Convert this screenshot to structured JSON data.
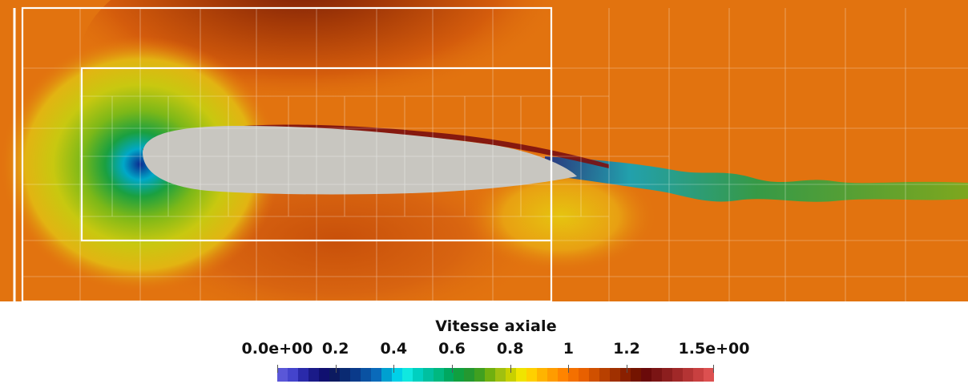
{
  "colorbar": {
    "title": "Vitesse axiale",
    "range": [
      0.0,
      1.5
    ],
    "ticks": [
      {
        "value": 0.0,
        "label": "0.0e+00"
      },
      {
        "value": 0.2,
        "label": "0.2"
      },
      {
        "value": 0.4,
        "label": "0.4"
      },
      {
        "value": 0.6,
        "label": "0.6"
      },
      {
        "value": 0.8,
        "label": "0.8"
      },
      {
        "value": 1.0,
        "label": "1"
      },
      {
        "value": 1.2,
        "label": "1.2"
      },
      {
        "value": 1.5,
        "label": "1.5e+00"
      }
    ],
    "colors": [
      "#5a57d8",
      "#4444cc",
      "#2a2aaa",
      "#1a1a88",
      "#101070",
      "#0c1a60",
      "#0a2a72",
      "#0a3a8a",
      "#0a52a2",
      "#0a6aba",
      "#00a0d0",
      "#00d0e8",
      "#10e8e0",
      "#00d0c0",
      "#00c0a0",
      "#00b880",
      "#00a860",
      "#10a040",
      "#249830",
      "#40a020",
      "#70b010",
      "#a0c010",
      "#c8d000",
      "#f0e400",
      "#ffd000",
      "#ffb400",
      "#ff9c00",
      "#ff8400",
      "#f47000",
      "#e86000",
      "#d05000",
      "#b84000",
      "#a03000",
      "#8a2000",
      "#741400",
      "#6a0a0a",
      "#7a1414",
      "#8c1e1e",
      "#a02828",
      "#b43434",
      "#c84040",
      "#dc5050"
    ]
  },
  "viewport": {
    "background_color": "#e2730f",
    "airfoil_color": "#c8c6c0",
    "mesh_color": "#ffffff"
  }
}
